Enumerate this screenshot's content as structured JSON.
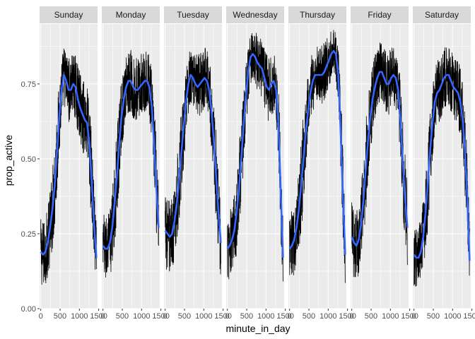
{
  "chart_data": {
    "type": "line",
    "xlabel": "minute_in_day",
    "ylabel": "prop_active",
    "xlim": [
      -30,
      1470
    ],
    "ylim": [
      0,
      0.95
    ],
    "x_ticks": [
      0,
      500,
      1000,
      1500
    ],
    "x_tick_labels": [
      "0",
      "500",
      "1000",
      "1500"
    ],
    "y_ticks": [
      0,
      0.25,
      0.5,
      0.75
    ],
    "y_tick_labels": [
      "0.00",
      "0.25",
      "0.50",
      "0.75"
    ],
    "grid": true,
    "colors": {
      "panel_bg": "#ebebeb",
      "strip_bg": "#d9d9d9",
      "grid_major": "#ffffff",
      "raw_line": "#000000",
      "smooth_line": "#3366ff"
    },
    "facet_by": "day",
    "panels": [
      {
        "day": "Sunday",
        "smooth": {
          "x": [
            0,
            60,
            120,
            180,
            240,
            300,
            360,
            420,
            480,
            540,
            600,
            660,
            720,
            780,
            840,
            900,
            960,
            1020,
            1080,
            1140,
            1200,
            1260,
            1320,
            1380,
            1440
          ],
          "y": [
            0.19,
            0.18,
            0.19,
            0.22,
            0.27,
            0.33,
            0.41,
            0.52,
            0.64,
            0.73,
            0.78,
            0.76,
            0.73,
            0.73,
            0.75,
            0.74,
            0.7,
            0.67,
            0.65,
            0.63,
            0.62,
            0.55,
            0.42,
            0.28,
            0.17
          ]
        }
      },
      {
        "day": "Monday",
        "smooth": {
          "x": [
            0,
            60,
            120,
            180,
            240,
            300,
            360,
            420,
            480,
            540,
            600,
            660,
            720,
            780,
            840,
            900,
            960,
            1020,
            1080,
            1140,
            1200,
            1260,
            1320,
            1380,
            1440
          ],
          "y": [
            0.21,
            0.2,
            0.2,
            0.22,
            0.27,
            0.35,
            0.44,
            0.55,
            0.64,
            0.7,
            0.74,
            0.76,
            0.76,
            0.74,
            0.73,
            0.73,
            0.74,
            0.75,
            0.76,
            0.76,
            0.74,
            0.68,
            0.56,
            0.41,
            0.27
          ]
        }
      },
      {
        "day": "Tuesday",
        "smooth": {
          "x": [
            0,
            60,
            120,
            180,
            240,
            300,
            360,
            420,
            480,
            540,
            600,
            660,
            720,
            780,
            840,
            900,
            960,
            1020,
            1080,
            1140,
            1200,
            1260,
            1320,
            1380,
            1440
          ],
          "y": [
            0.26,
            0.25,
            0.24,
            0.25,
            0.29,
            0.35,
            0.43,
            0.52,
            0.61,
            0.69,
            0.75,
            0.78,
            0.77,
            0.75,
            0.74,
            0.75,
            0.76,
            0.77,
            0.76,
            0.73,
            0.66,
            0.56,
            0.44,
            0.32,
            0.22
          ]
        }
      },
      {
        "day": "Wednesday",
        "smooth": {
          "x": [
            0,
            60,
            120,
            180,
            240,
            300,
            360,
            420,
            480,
            540,
            600,
            660,
            720,
            780,
            840,
            900,
            960,
            1020,
            1080,
            1140,
            1200,
            1260,
            1320,
            1380,
            1440
          ],
          "y": [
            0.2,
            0.21,
            0.23,
            0.26,
            0.32,
            0.4,
            0.5,
            0.61,
            0.71,
            0.79,
            0.84,
            0.85,
            0.84,
            0.82,
            0.81,
            0.8,
            0.77,
            0.74,
            0.73,
            0.75,
            0.76,
            0.73,
            0.62,
            0.4,
            0.17
          ]
        }
      },
      {
        "day": "Thursday",
        "smooth": {
          "x": [
            0,
            60,
            120,
            180,
            240,
            300,
            360,
            420,
            480,
            540,
            600,
            660,
            720,
            780,
            840,
            900,
            960,
            1020,
            1080,
            1140,
            1200,
            1260,
            1320,
            1380,
            1440
          ],
          "y": [
            0.2,
            0.21,
            0.23,
            0.27,
            0.33,
            0.41,
            0.5,
            0.59,
            0.66,
            0.72,
            0.76,
            0.78,
            0.78,
            0.78,
            0.78,
            0.79,
            0.81,
            0.83,
            0.85,
            0.86,
            0.85,
            0.78,
            0.6,
            0.38,
            0.18
          ]
        }
      },
      {
        "day": "Friday",
        "smooth": {
          "x": [
            0,
            60,
            120,
            180,
            240,
            300,
            360,
            420,
            480,
            540,
            600,
            660,
            720,
            780,
            840,
            900,
            960,
            1020,
            1080,
            1140,
            1200,
            1260,
            1320,
            1380,
            1440
          ],
          "y": [
            0.24,
            0.22,
            0.21,
            0.23,
            0.28,
            0.36,
            0.46,
            0.56,
            0.64,
            0.7,
            0.74,
            0.77,
            0.79,
            0.79,
            0.77,
            0.75,
            0.75,
            0.77,
            0.78,
            0.77,
            0.73,
            0.63,
            0.49,
            0.37,
            0.27
          ]
        }
      },
      {
        "day": "Saturday",
        "smooth": {
          "x": [
            0,
            60,
            120,
            180,
            240,
            300,
            360,
            420,
            480,
            540,
            600,
            660,
            720,
            780,
            840,
            900,
            960,
            1020,
            1080,
            1140,
            1200,
            1260,
            1320,
            1380,
            1440
          ],
          "y": [
            0.18,
            0.17,
            0.17,
            0.19,
            0.24,
            0.32,
            0.42,
            0.53,
            0.62,
            0.69,
            0.72,
            0.73,
            0.75,
            0.77,
            0.78,
            0.78,
            0.76,
            0.74,
            0.73,
            0.72,
            0.69,
            0.63,
            0.53,
            0.37,
            0.16
          ]
        }
      }
    ]
  }
}
